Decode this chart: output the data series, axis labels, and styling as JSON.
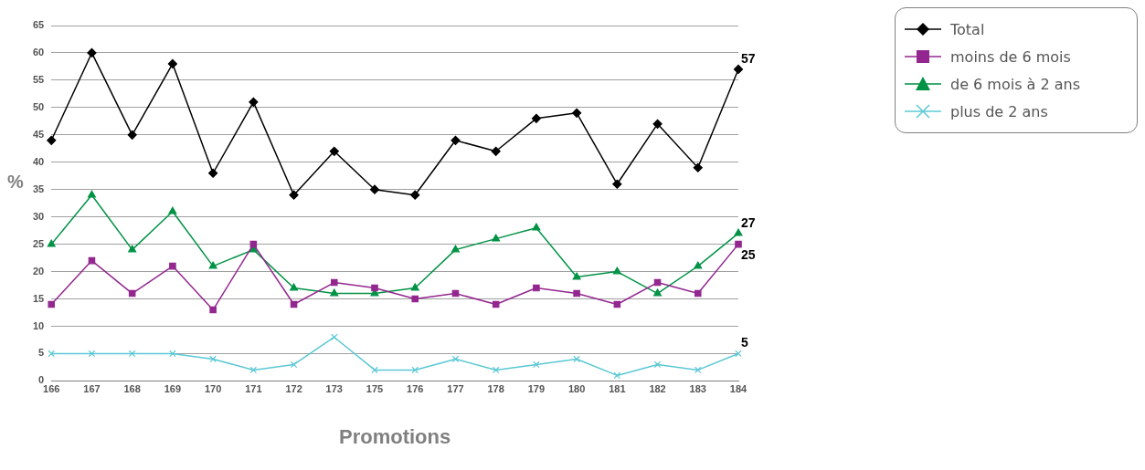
{
  "chart_data": {
    "type": "line",
    "xlabel": "Promotions",
    "ylabel": "%",
    "categories": [
      "166",
      "167",
      "168",
      "169",
      "170",
      "171",
      "172",
      "173",
      "175",
      "176",
      "177",
      "178",
      "179",
      "180",
      "181",
      "182",
      "183",
      "184"
    ],
    "series": [
      {
        "name": "Total",
        "color": "#000000",
        "marker": "diamond",
        "values": [
          44,
          60,
          45,
          58,
          38,
          51,
          34,
          42,
          35,
          34,
          44,
          42,
          48,
          49,
          36,
          47,
          39,
          57
        ],
        "value_labels": [
          null,
          null,
          null,
          null,
          null,
          null,
          null,
          null,
          null,
          null,
          null,
          null,
          null,
          null,
          null,
          null,
          null,
          "57"
        ]
      },
      {
        "name": "moins de 6 mois",
        "color": "#93278f",
        "marker": "square",
        "values": [
          14,
          22,
          16,
          21,
          13,
          25,
          14,
          18,
          17,
          15,
          16,
          14,
          17,
          16,
          14,
          18,
          16,
          25
        ],
        "value_labels": [
          null,
          null,
          null,
          null,
          null,
          null,
          null,
          null,
          null,
          null,
          null,
          null,
          null,
          null,
          null,
          null,
          null,
          "25"
        ]
      },
      {
        "name": "de 6 mois à 2 ans",
        "color": "#009245",
        "marker": "triangle",
        "values": [
          25,
          34,
          24,
          31,
          21,
          24,
          17,
          16,
          16,
          17,
          24,
          26,
          28,
          19,
          20,
          16,
          21,
          27
        ],
        "value_labels": [
          null,
          null,
          null,
          null,
          null,
          null,
          null,
          null,
          null,
          null,
          null,
          null,
          null,
          null,
          null,
          null,
          null,
          "27"
        ]
      },
      {
        "name": "plus de 2 ans",
        "color": "#5bc8d4",
        "marker": "cross",
        "values": [
          5,
          5,
          5,
          5,
          4,
          2,
          3,
          8,
          2,
          2,
          4,
          2,
          3,
          4,
          1,
          3,
          2,
          5
        ],
        "value_labels": [
          null,
          null,
          null,
          null,
          null,
          null,
          null,
          null,
          null,
          null,
          null,
          null,
          null,
          null,
          null,
          null,
          null,
          "5"
        ]
      }
    ],
    "ylim": [
      0,
      65
    ],
    "yticks": [
      0,
      5,
      10,
      15,
      20,
      25,
      30,
      35,
      40,
      45,
      50,
      55,
      60,
      65
    ],
    "grid": "y",
    "legend": "top right",
    "line_style": "solid"
  }
}
